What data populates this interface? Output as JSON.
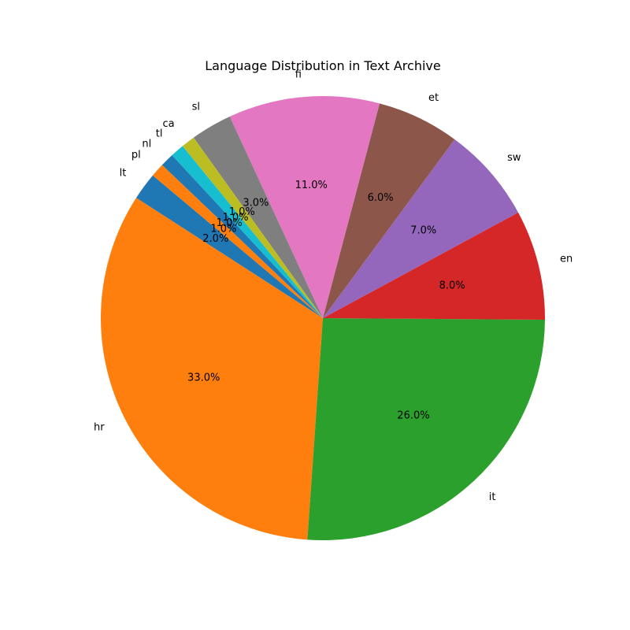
{
  "chart_data": {
    "type": "pie",
    "title": "Language Distribution in Text Archive",
    "start_angle_deg": 140,
    "direction": "counterclockwise",
    "slices": [
      {
        "label": "lt",
        "value": 2.0,
        "pct_label": "2.0%",
        "color": "#1f77b4"
      },
      {
        "label": "hr",
        "value": 33.0,
        "pct_label": "33.0%",
        "color": "#ff7f0e"
      },
      {
        "label": "it",
        "value": 26.0,
        "pct_label": "26.0%",
        "color": "#2ca02c"
      },
      {
        "label": "en",
        "value": 8.0,
        "pct_label": "8.0%",
        "color": "#d62728"
      },
      {
        "label": "sw",
        "value": 7.0,
        "pct_label": "7.0%",
        "color": "#9467bd"
      },
      {
        "label": "et",
        "value": 6.0,
        "pct_label": "6.0%",
        "color": "#8c564b"
      },
      {
        "label": "fi",
        "value": 11.0,
        "pct_label": "11.0%",
        "color": "#e377c2"
      },
      {
        "label": "sl",
        "value": 3.0,
        "pct_label": "3.0%",
        "color": "#7f7f7f"
      },
      {
        "label": "ca",
        "value": 1.0,
        "pct_label": "1.0%",
        "color": "#bcbd22"
      },
      {
        "label": "tl",
        "value": 1.0,
        "pct_label": "1.0%",
        "color": "#17becf"
      },
      {
        "label": "nl",
        "value": 1.0,
        "pct_label": "1.0%",
        "color": "#1f77b4"
      },
      {
        "label": "pl",
        "value": 1.0,
        "pct_label": "1.0%",
        "color": "#ff7f0e"
      }
    ]
  }
}
